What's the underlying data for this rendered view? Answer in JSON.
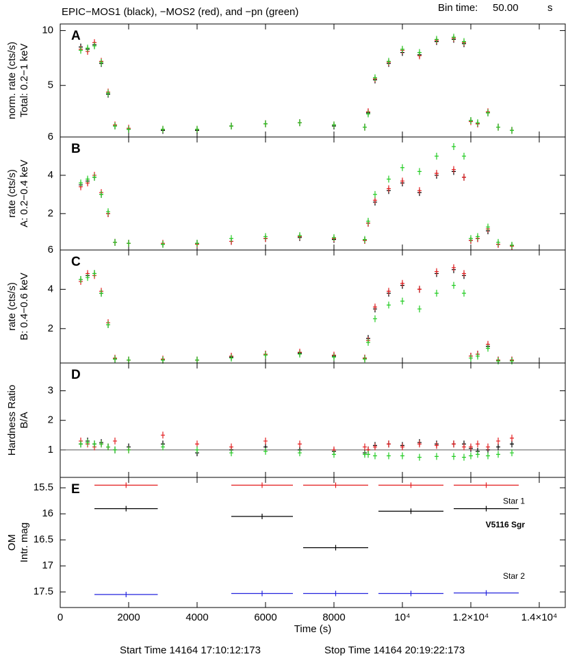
{
  "header": {
    "title": "EPIC−MOS1 (black), −MOS2 (red), and −pn (green)",
    "bin_label": "Bin time:",
    "bin_value": "50.00",
    "bin_unit": "s"
  },
  "chart_data": [
    {
      "type": "scatter",
      "label": "A",
      "y_label": [
        "norm. rate (cts/s)",
        "Total: 0.2−1 keV"
      ],
      "ylim": [
        0.3,
        10.6
      ],
      "yticks": [
        5,
        10
      ],
      "xlim": [
        0,
        14760
      ],
      "x": [
        600,
        800,
        1000,
        1200,
        1400,
        1600,
        2000,
        3000,
        4000,
        5000,
        6000,
        7000,
        8000,
        8900,
        9000,
        9200,
        9600,
        10000,
        10500,
        11000,
        11500,
        11800,
        12000,
        12200,
        12500,
        12800,
        13200
      ],
      "series": [
        {
          "color": "#000000",
          "values": [
            8.5,
            8.3,
            8.7,
            7.0,
            4.2,
            1.3,
            1.0,
            0.9,
            0.9,
            1.3,
            1.5,
            1.6,
            1.3,
            1.2,
            2.5,
            5.5,
            7.0,
            8.0,
            7.8,
            9.0,
            9.2,
            8.8,
            1.8,
            1.5,
            2.5,
            1.2,
            0.9
          ]
        },
        {
          "color": "#e31a1c",
          "values": [
            8.3,
            8.1,
            8.9,
            7.2,
            4.4,
            1.4,
            1.1,
            1.0,
            1.0,
            1.3,
            1.5,
            1.6,
            1.4,
            1.2,
            2.6,
            5.6,
            7.1,
            8.2,
            7.7,
            9.1,
            9.3,
            8.9,
            1.7,
            1.5,
            2.6,
            1.2,
            0.9
          ]
        },
        {
          "color": "#22cc22",
          "values": [
            8.2,
            8.4,
            8.6,
            7.1,
            4.3,
            1.3,
            1.0,
            1.0,
            1.0,
            1.3,
            1.5,
            1.6,
            1.4,
            1.2,
            2.4,
            5.7,
            7.2,
            8.3,
            8.0,
            9.2,
            9.4,
            9.0,
            1.8,
            1.6,
            2.5,
            1.2,
            0.9
          ]
        }
      ]
    },
    {
      "type": "scatter",
      "label": "B",
      "y_label": [
        "rate (cts/s)",
        "A: 0.2−0.4 keV"
      ],
      "ylim": [
        0.1,
        6
      ],
      "yticks": [
        2,
        4,
        6
      ],
      "xlim": [
        0,
        14760
      ],
      "x": [
        600,
        800,
        1000,
        1200,
        1400,
        1600,
        2000,
        3000,
        4000,
        5000,
        6000,
        7000,
        8000,
        8900,
        9000,
        9200,
        9600,
        10000,
        10500,
        11000,
        11500,
        11800,
        12000,
        12200,
        12500,
        12800,
        13200
      ],
      "series": [
        {
          "color": "#000000",
          "values": [
            3.5,
            3.7,
            3.9,
            3.0,
            2.0,
            0.5,
            0.45,
            0.4,
            0.45,
            0.55,
            0.7,
            0.75,
            0.65,
            0.6,
            1.5,
            2.6,
            3.2,
            3.6,
            3.1,
            4.0,
            4.2,
            3.9,
            0.6,
            0.7,
            1.1,
            0.4,
            0.3
          ]
        },
        {
          "color": "#e31a1c",
          "values": [
            3.4,
            3.6,
            4.0,
            3.1,
            2.0,
            0.5,
            0.45,
            0.45,
            0.4,
            0.55,
            0.7,
            0.8,
            0.7,
            0.6,
            1.5,
            2.7,
            3.3,
            3.7,
            3.2,
            4.1,
            4.3,
            3.9,
            0.6,
            0.7,
            1.2,
            0.4,
            0.3
          ]
        },
        {
          "color": "#22cc22",
          "values": [
            3.6,
            3.8,
            3.9,
            3.0,
            2.1,
            0.5,
            0.45,
            0.4,
            0.45,
            0.7,
            0.8,
            0.85,
            0.75,
            0.65,
            1.6,
            3.0,
            3.8,
            4.4,
            4.2,
            5.0,
            5.5,
            5.0,
            0.7,
            0.8,
            1.3,
            0.5,
            0.35
          ]
        }
      ]
    },
    {
      "type": "scatter",
      "label": "C",
      "y_label": [
        "rate (cts/s)",
        "B: 0.4−0.6 keV"
      ],
      "ylim": [
        0.25,
        6
      ],
      "yticks": [
        2,
        4,
        6
      ],
      "xlim": [
        0,
        14760
      ],
      "x": [
        600,
        800,
        1000,
        1200,
        1400,
        1600,
        2000,
        3000,
        4000,
        5000,
        6000,
        7000,
        8000,
        8900,
        9000,
        9200,
        9600,
        10000,
        10500,
        11000,
        11500,
        11800,
        12000,
        12200,
        12500,
        12800,
        13200
      ],
      "series": [
        {
          "color": "#000000",
          "values": [
            4.5,
            4.7,
            4.8,
            3.8,
            2.2,
            0.45,
            0.4,
            0.4,
            0.4,
            0.55,
            0.7,
            0.75,
            0.6,
            0.5,
            1.5,
            3.0,
            3.8,
            4.2,
            4.0,
            4.8,
            5.0,
            4.7,
            0.6,
            0.7,
            1.1,
            0.4,
            0.4
          ]
        },
        {
          "color": "#e31a1c",
          "values": [
            4.4,
            4.8,
            4.7,
            3.9,
            2.3,
            0.5,
            0.4,
            0.45,
            0.4,
            0.6,
            0.7,
            0.8,
            0.65,
            0.5,
            1.4,
            3.1,
            3.9,
            4.3,
            4.0,
            4.9,
            5.1,
            4.8,
            0.6,
            0.7,
            1.2,
            0.4,
            0.4
          ]
        },
        {
          "color": "#22cc22",
          "values": [
            4.5,
            4.6,
            4.8,
            3.8,
            2.2,
            0.45,
            0.4,
            0.4,
            0.4,
            0.5,
            0.65,
            0.7,
            0.55,
            0.45,
            1.3,
            2.5,
            3.2,
            3.4,
            3.0,
            3.8,
            4.2,
            3.8,
            0.5,
            0.6,
            1.0,
            0.35,
            0.35
          ]
        }
      ]
    },
    {
      "type": "scatter",
      "label": "D",
      "y_label": [
        "Hardness Ratio",
        "B/A"
      ],
      "ylim": [
        0.07,
        3.94
      ],
      "yticks": [
        1,
        2,
        3
      ],
      "ref_line": 1,
      "xlim": [
        0,
        14760
      ],
      "x": [
        600,
        800,
        1000,
        1200,
        1400,
        1600,
        2000,
        3000,
        4000,
        5000,
        6000,
        7000,
        8000,
        8900,
        9000,
        9200,
        9600,
        10000,
        10500,
        11000,
        11500,
        11800,
        12000,
        12200,
        12500,
        12800,
        13200
      ],
      "series": [
        {
          "color": "#000000",
          "values": [
            1.2,
            1.3,
            1.2,
            1.25,
            1.1,
            1.0,
            1.1,
            1.2,
            0.9,
            1.0,
            1.1,
            1.0,
            0.95,
            0.9,
            1.0,
            1.15,
            1.2,
            1.15,
            1.25,
            1.2,
            1.2,
            1.2,
            1.05,
            0.95,
            1.0,
            1.1,
            1.2
          ]
        },
        {
          "color": "#e31a1c",
          "values": [
            1.3,
            1.2,
            1.1,
            1.2,
            1.1,
            1.3,
            1.0,
            1.5,
            1.2,
            1.1,
            1.3,
            1.2,
            1.0,
            1.1,
            1.0,
            1.1,
            1.2,
            1.1,
            1.2,
            1.15,
            1.2,
            1.1,
            1.1,
            1.2,
            1.1,
            1.3,
            1.4
          ]
        },
        {
          "color": "#22cc22",
          "values": [
            1.2,
            1.25,
            1.2,
            1.2,
            1.1,
            1.0,
            1.0,
            1.1,
            1.0,
            0.9,
            0.95,
            0.9,
            0.85,
            0.85,
            0.85,
            0.8,
            0.8,
            0.8,
            0.75,
            0.78,
            0.78,
            0.75,
            0.8,
            0.85,
            0.8,
            0.85,
            0.9
          ]
        }
      ]
    },
    {
      "type": "errorbar",
      "label": "E",
      "y_label": [
        "OM",
        "Intr. mag"
      ],
      "ylim": [
        17.8,
        15.3
      ],
      "yticks": [
        15.5,
        16,
        16.5,
        17,
        17.5
      ],
      "xlim": [
        0,
        14760
      ],
      "xticks": [
        0,
        2000,
        4000,
        6000,
        8000,
        {
          "value": 10000,
          "label": "10⁴"
        },
        {
          "value": 12000,
          "label": "1.2×10⁴"
        },
        {
          "value": 14000,
          "label": "1.4×10⁴"
        }
      ],
      "x_label": "Time (s)",
      "series": [
        {
          "name": "Star 1",
          "color": "#e31a1c",
          "x": [
            1925,
            5900,
            8050,
            10250,
            12450
          ],
          "xerr": [
            925,
            900,
            950,
            950,
            950
          ],
          "values": [
            15.45,
            15.45,
            15.45,
            15.45,
            15.45
          ]
        },
        {
          "name": "V5116 Sgr",
          "color": "#000000",
          "x": [
            1925,
            5900,
            8050,
            10250,
            12450
          ],
          "xerr": [
            925,
            900,
            950,
            950,
            950
          ],
          "values": [
            15.9,
            16.05,
            16.65,
            15.95,
            15.9
          ]
        },
        {
          "name": "Star 2",
          "color": "#2222dd",
          "x": [
            1925,
            5900,
            8050,
            10250,
            12450
          ],
          "xerr": [
            925,
            900,
            950,
            950,
            950
          ],
          "values": [
            17.55,
            17.53,
            17.53,
            17.53,
            17.52
          ]
        }
      ]
    }
  ],
  "footer": {
    "start": "Start Time 14164 17:10:12:173",
    "stop": "Stop Time 14164 20:19:22:173"
  }
}
